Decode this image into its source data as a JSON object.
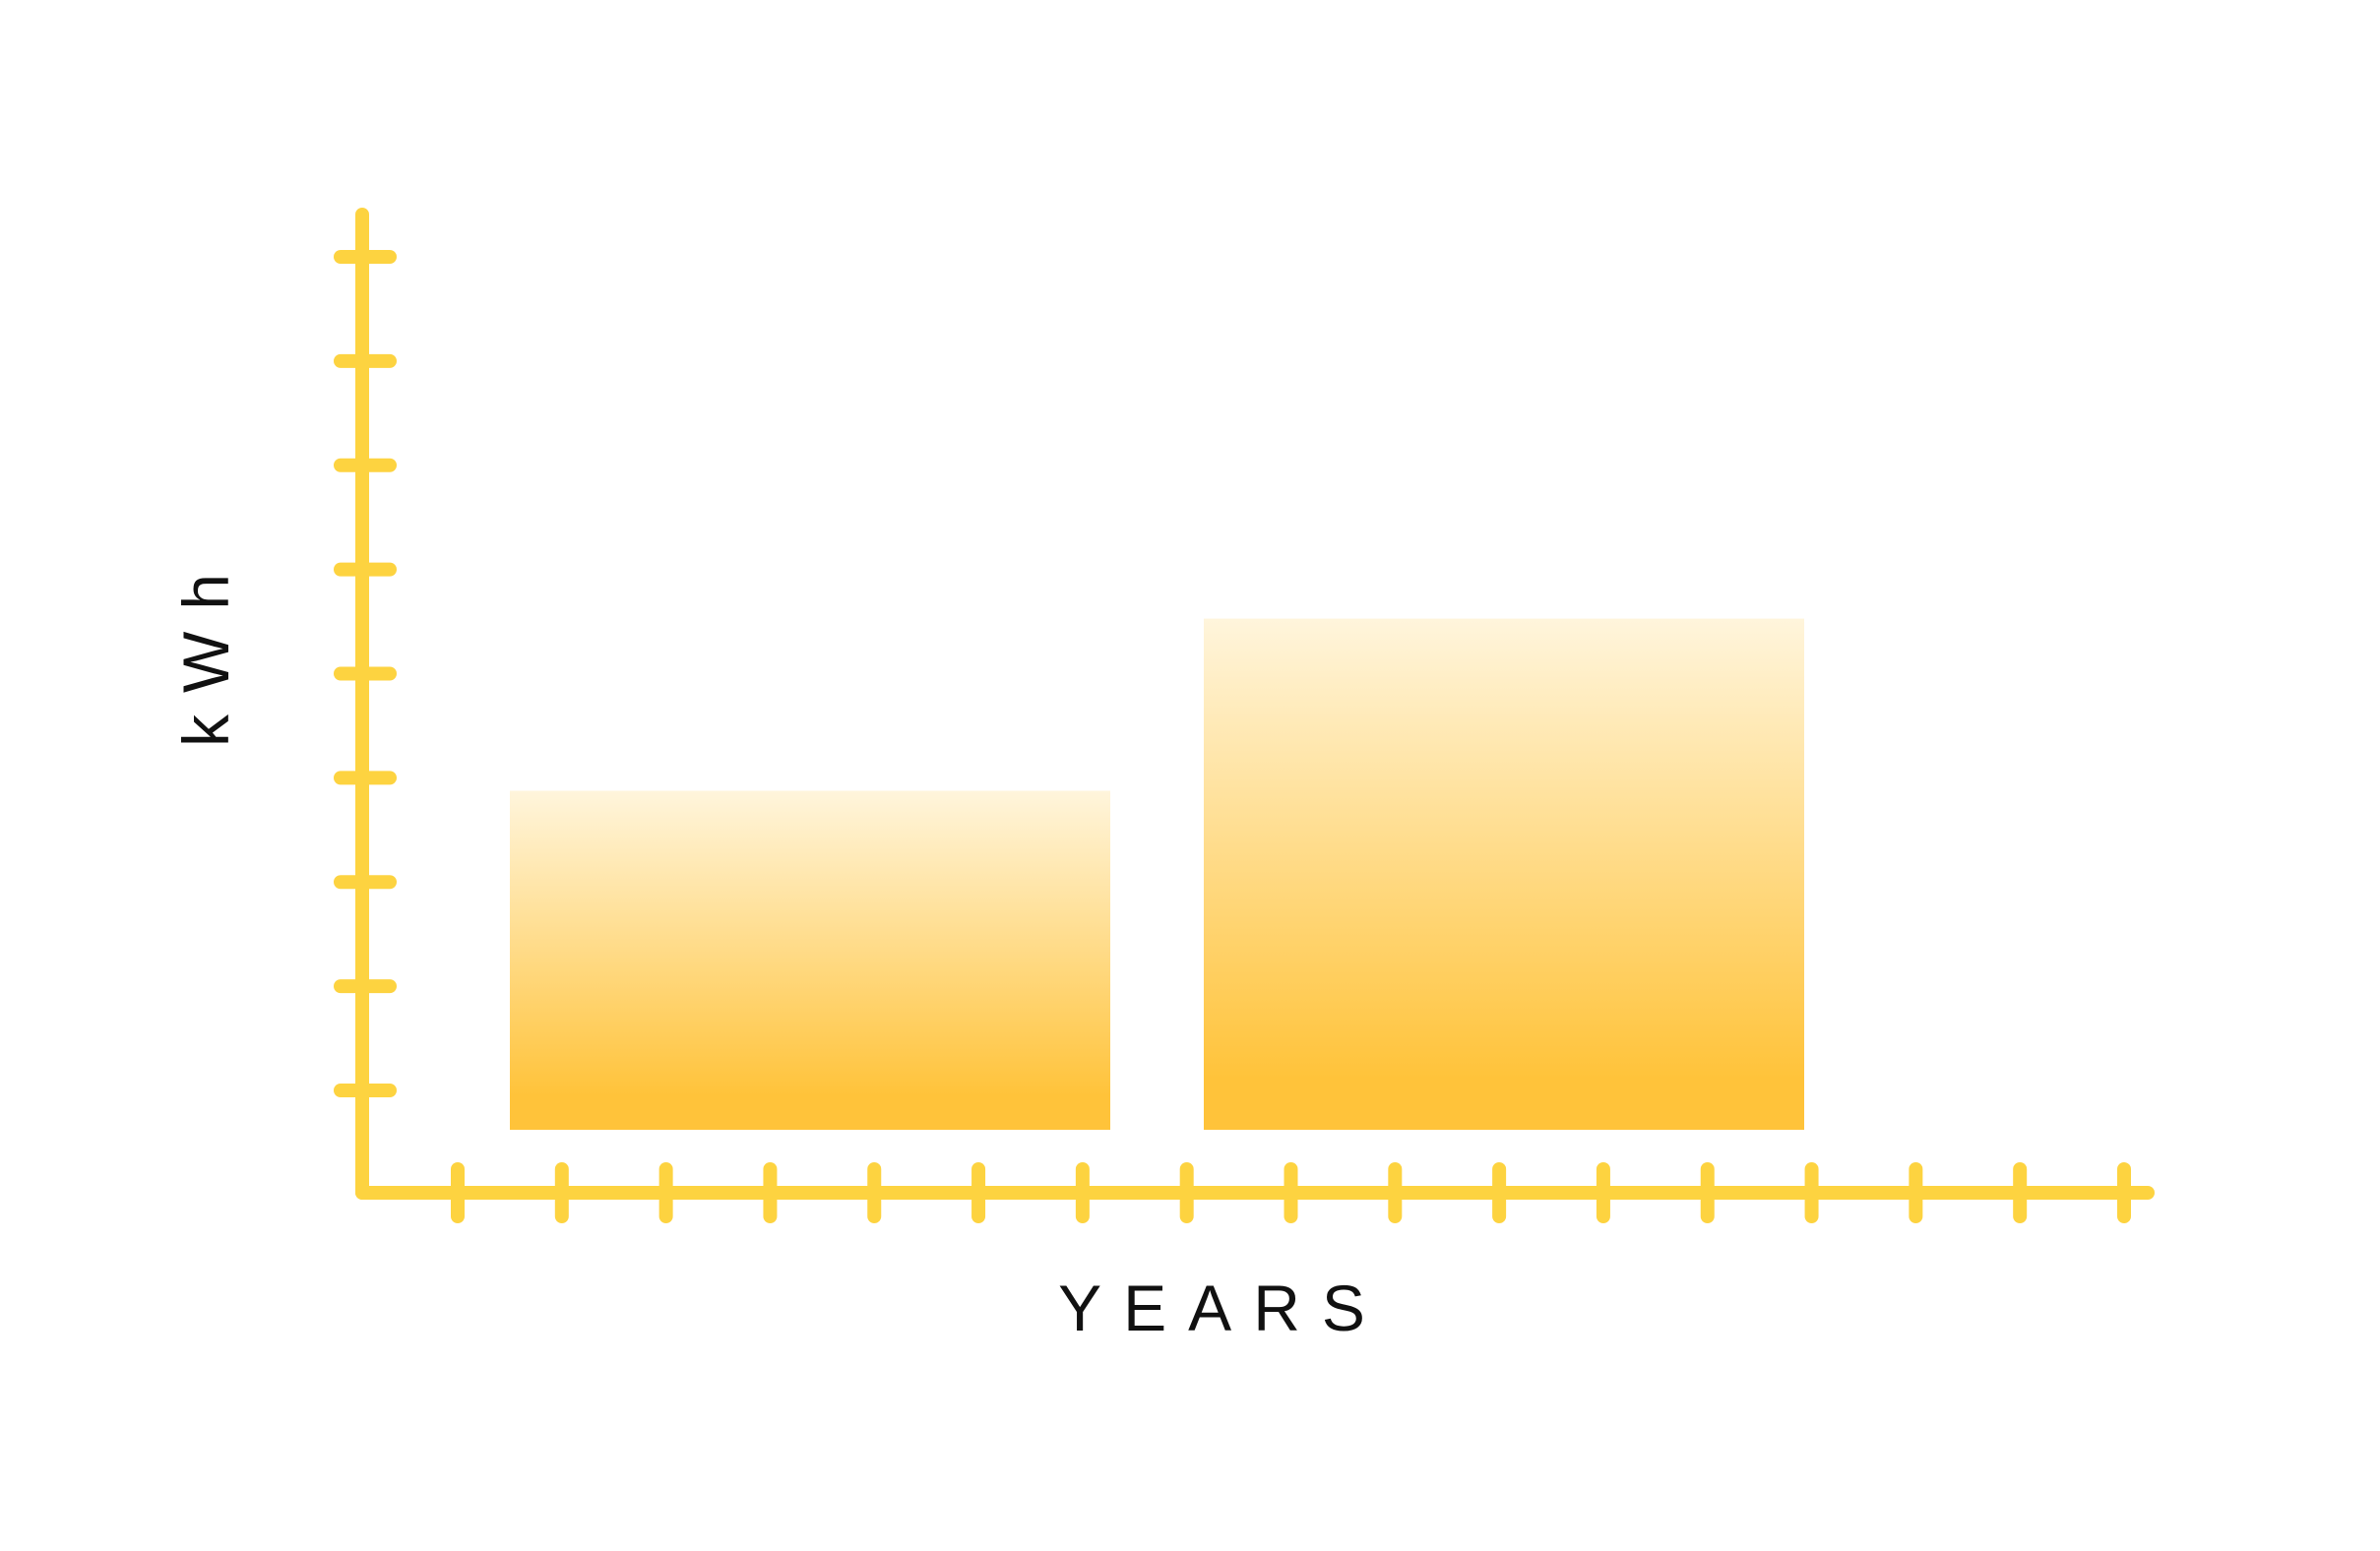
{
  "chart_data": {
    "type": "bar",
    "xlabel": "YEARS",
    "ylabel": "kWh",
    "ylim": [
      0,
      9
    ],
    "y_tick_count": 9,
    "x_tick_count": 17,
    "grid": false,
    "legend": "none",
    "values": [
      3.25,
      4.9
    ],
    "colors": {
      "axis": "#FDD340",
      "bar_top": "#FFF5DC",
      "bar_bottom": "#FFC33A"
    }
  }
}
